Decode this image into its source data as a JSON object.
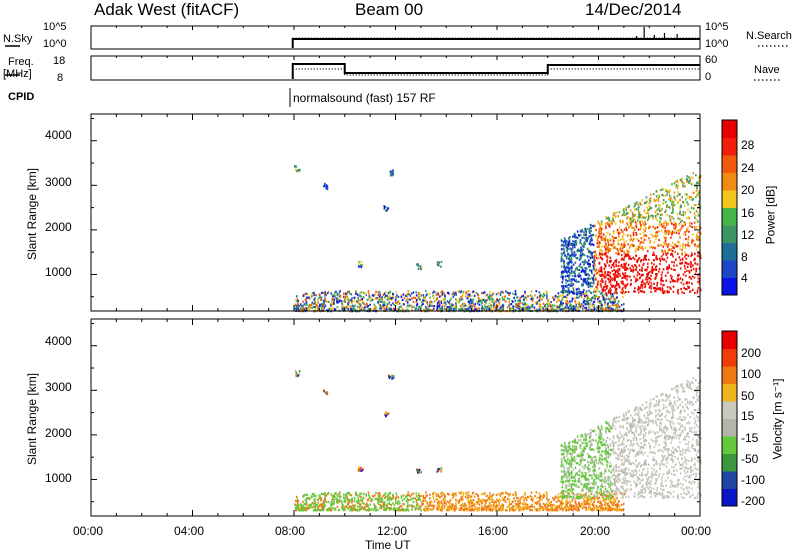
{
  "header": {
    "station": "Adak West (fitACF)",
    "beam": "Beam 00",
    "date": "14/Dec/2014"
  },
  "top_panels": {
    "nsky_label": "N.Sky",
    "nsky_ticks": [
      "10^5",
      "10^0"
    ],
    "nsearch_label": "N.Search",
    "nsearch_ticks": [
      "10^5",
      "10^0"
    ],
    "freq_label_line1": "Freq.",
    "freq_label_line2": "[MHz]",
    "freq_ticks": [
      "18",
      "8"
    ],
    "nave_label": "Nave",
    "nave_ticks": [
      "60",
      "0"
    ],
    "cpid_label": "CPID",
    "cpid_text": "normalsound (fast) 157 RF"
  },
  "colors": {
    "power_scale": [
      "#0a14e6",
      "#1e46c8",
      "#1e6e96",
      "#3c9664",
      "#46b446",
      "#f0c81e",
      "#f08c14",
      "#f05a0a",
      "#f01e0a",
      "#e60000"
    ],
    "velocity_scale": [
      "#e60000",
      "#f03c0a",
      "#f07814",
      "#f0b41e",
      "#c8c8be",
      "#b4b4aa",
      "#64c83c",
      "#3c963c",
      "#1e46a0",
      "#0a14c8"
    ]
  },
  "chart_data": [
    {
      "type": "heatmap",
      "name": "power",
      "ylabel": "Slant Range [km]",
      "ylim": [
        180,
        4600
      ],
      "yticks": [
        "4000",
        "3000",
        "2000",
        "1000"
      ],
      "xlim": [
        0,
        24
      ],
      "colorbar_label": "Power [dB]",
      "colorbar_ticks": [
        "28",
        "24",
        "20",
        "16",
        "12",
        "8",
        "4"
      ],
      "colorbar_range": [
        0,
        32
      ]
    },
    {
      "type": "heatmap",
      "name": "velocity",
      "ylabel": "Slant Range [km]",
      "ylim": [
        180,
        4600
      ],
      "yticks": [
        "4000",
        "3000",
        "2000",
        "1000"
      ],
      "xlim": [
        0,
        24
      ],
      "colorbar_label": "Velocity [m s⁻¹]",
      "colorbar_ticks": [
        "200",
        "100",
        "50",
        "15",
        "-15",
        "-50",
        "-100",
        "-200"
      ]
    }
  ],
  "x_axis": {
    "ticks": [
      "00:00",
      "04:00",
      "08:00",
      "12:00",
      "16:00",
      "20:00",
      "00:00"
    ],
    "tick_hours": [
      0,
      4,
      8,
      12,
      16,
      20,
      24
    ],
    "label": "Time UT"
  }
}
